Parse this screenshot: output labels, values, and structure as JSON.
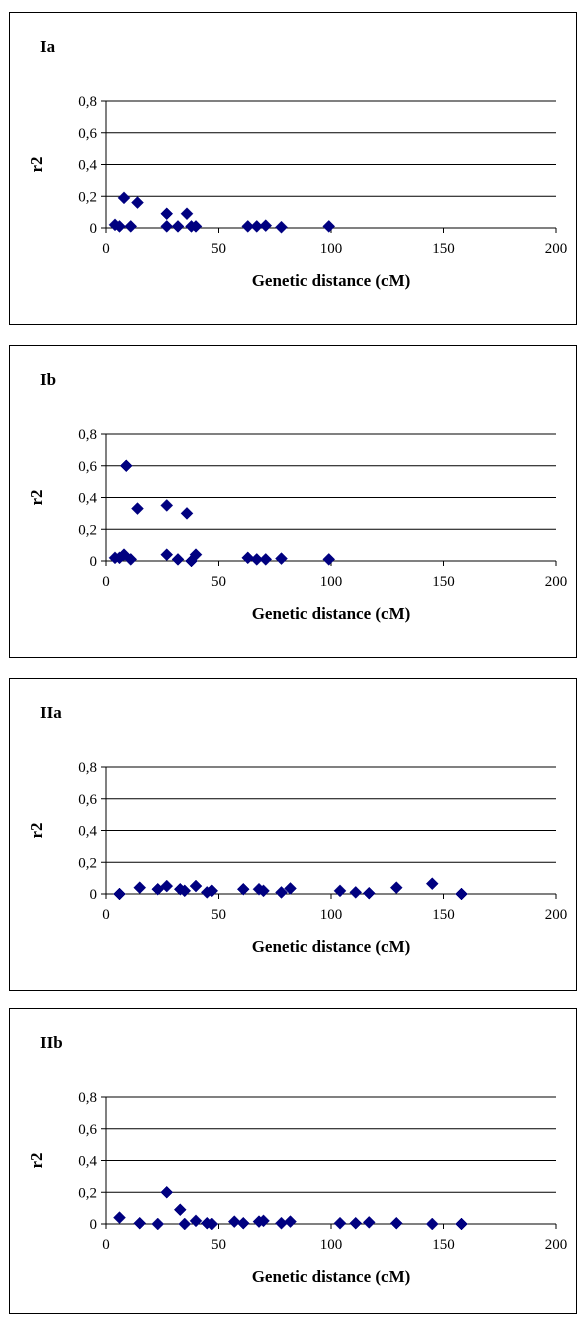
{
  "chart_data": [
    {
      "type": "scatter",
      "title": "Ia",
      "xlabel": "Genetic distance (cM)",
      "ylabel": "r2",
      "xlim": [
        0,
        200
      ],
      "ylim": [
        0,
        0.8
      ],
      "x_ticks": [
        "0",
        "50",
        "100",
        "150",
        "200"
      ],
      "y_ticks": [
        "0",
        "0,2",
        "0,4",
        "0,6",
        "0,8"
      ],
      "grid": "horizontal",
      "marker_color": "#000080",
      "points": [
        [
          4,
          0.02
        ],
        [
          6,
          0.01
        ],
        [
          8,
          0.19
        ],
        [
          11,
          0.01
        ],
        [
          14,
          0.16
        ],
        [
          27,
          0.09
        ],
        [
          27,
          0.01
        ],
        [
          32,
          0.01
        ],
        [
          36,
          0.09
        ],
        [
          38,
          0.01
        ],
        [
          40,
          0.01
        ],
        [
          63,
          0.01
        ],
        [
          67,
          0.01
        ],
        [
          71,
          0.015
        ],
        [
          78,
          0.005
        ],
        [
          99,
          0.01
        ]
      ]
    },
    {
      "type": "scatter",
      "title": "Ib",
      "xlabel": "Genetic distance (cM)",
      "ylabel": "r2",
      "xlim": [
        0,
        200
      ],
      "ylim": [
        0,
        0.8
      ],
      "x_ticks": [
        "0",
        "50",
        "100",
        "150",
        "200"
      ],
      "y_ticks": [
        "0",
        "0,2",
        "0,4",
        "0,6",
        "0,8"
      ],
      "grid": "horizontal",
      "marker_color": "#000080",
      "points": [
        [
          4,
          0.02
        ],
        [
          6,
          0.02
        ],
        [
          8,
          0.04
        ],
        [
          9,
          0.6
        ],
        [
          11,
          0.01
        ],
        [
          14,
          0.33
        ],
        [
          27,
          0.35
        ],
        [
          27,
          0.04
        ],
        [
          32,
          0.01
        ],
        [
          36,
          0.3
        ],
        [
          38,
          0.0
        ],
        [
          40,
          0.04
        ],
        [
          63,
          0.02
        ],
        [
          67,
          0.01
        ],
        [
          71,
          0.01
        ],
        [
          78,
          0.015
        ],
        [
          99,
          0.01
        ]
      ]
    },
    {
      "type": "scatter",
      "title": "IIa",
      "xlabel": "Genetic distance (cM)",
      "ylabel": "r2",
      "xlim": [
        0,
        200
      ],
      "ylim": [
        0,
        0.8
      ],
      "x_ticks": [
        "0",
        "50",
        "100",
        "150",
        "200"
      ],
      "y_ticks": [
        "0",
        "0,2",
        "0,4",
        "0,6",
        "0,8"
      ],
      "grid": "horizontal",
      "marker_color": "#000080",
      "points": [
        [
          6,
          0.0
        ],
        [
          15,
          0.04
        ],
        [
          23,
          0.03
        ],
        [
          27,
          0.05
        ],
        [
          33,
          0.03
        ],
        [
          35,
          0.02
        ],
        [
          40,
          0.05
        ],
        [
          45,
          0.01
        ],
        [
          47,
          0.02
        ],
        [
          61,
          0.03
        ],
        [
          68,
          0.03
        ],
        [
          70,
          0.02
        ],
        [
          78,
          0.01
        ],
        [
          82,
          0.035
        ],
        [
          104,
          0.02
        ],
        [
          111,
          0.01
        ],
        [
          117,
          0.005
        ],
        [
          129,
          0.04
        ],
        [
          145,
          0.065
        ],
        [
          158,
          0.0
        ]
      ]
    },
    {
      "type": "scatter",
      "title": "IIb",
      "xlabel": "Genetic distance (cM)",
      "ylabel": "r2",
      "xlim": [
        0,
        200
      ],
      "ylim": [
        0,
        0.8
      ],
      "x_ticks": [
        "0",
        "50",
        "100",
        "150",
        "200"
      ],
      "y_ticks": [
        "0",
        "0,2",
        "0,4",
        "0,6",
        "0,8"
      ],
      "grid": "horizontal",
      "marker_color": "#000080",
      "points": [
        [
          6,
          0.04
        ],
        [
          15,
          0.005
        ],
        [
          23,
          0.0
        ],
        [
          27,
          0.2
        ],
        [
          33,
          0.09
        ],
        [
          35,
          0.0
        ],
        [
          40,
          0.02
        ],
        [
          45,
          0.005
        ],
        [
          47,
          0.0
        ],
        [
          57,
          0.015
        ],
        [
          61,
          0.005
        ],
        [
          68,
          0.015
        ],
        [
          70,
          0.02
        ],
        [
          78,
          0.005
        ],
        [
          82,
          0.015
        ],
        [
          104,
          0.005
        ],
        [
          111,
          0.005
        ],
        [
          117,
          0.01
        ],
        [
          129,
          0.005
        ],
        [
          145,
          0.0
        ],
        [
          158,
          0.0
        ]
      ]
    }
  ]
}
